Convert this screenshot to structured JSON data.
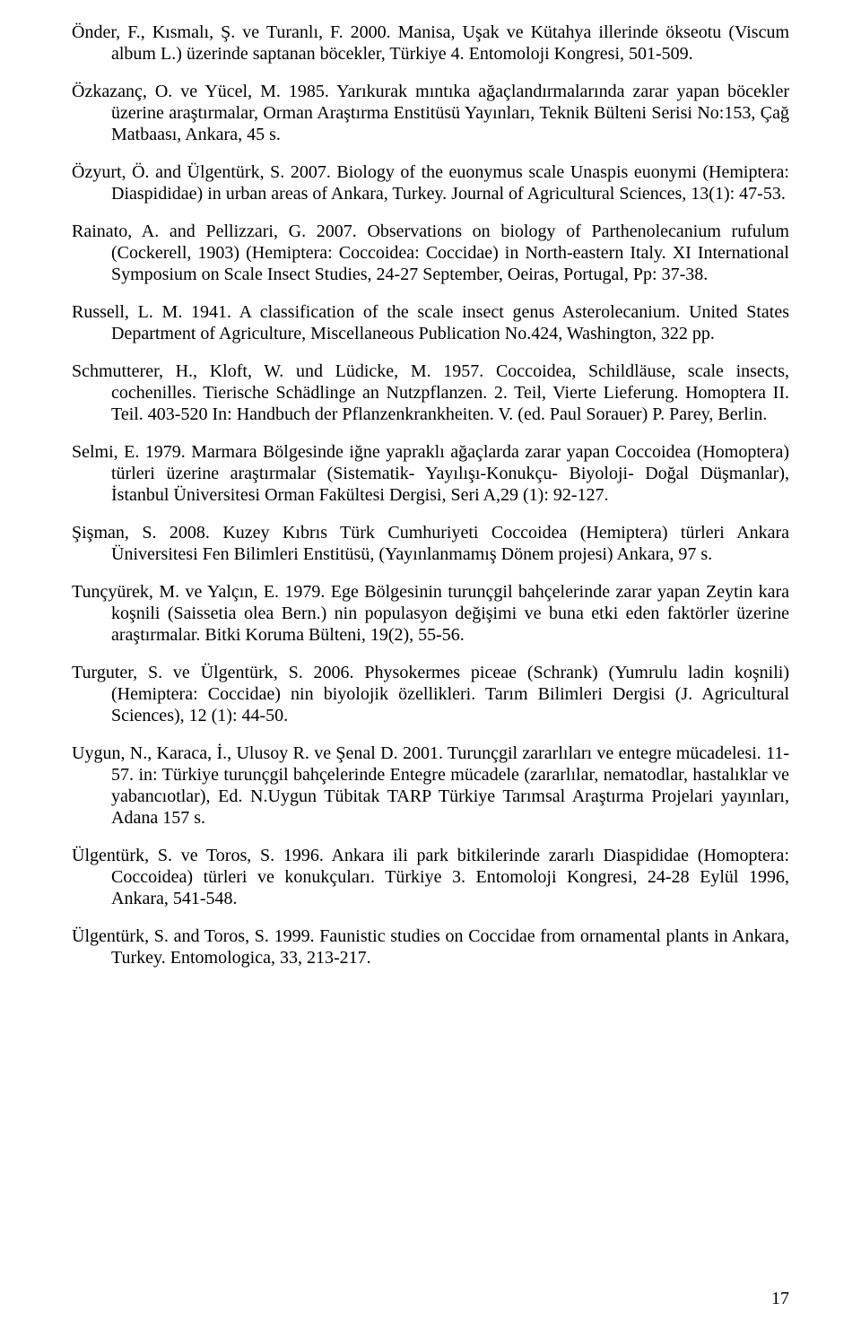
{
  "page": {
    "number": "17",
    "font_family": "Times New Roman",
    "font_size_pt": 15,
    "text_color": "#000000",
    "background_color": "#ffffff"
  },
  "references": [
    "Önder, F., Kısmalı, Ş. ve Turanlı, F. 2000. Manisa, Uşak ve Kütahya illerinde ökseotu (Viscum album L.) üzerinde saptanan böcekler, Türkiye 4. Entomoloji Kongresi, 501-509.",
    "Özkazanç, O. ve Yücel, M. 1985. Yarıkurak mıntıka ağaçlandırmalarında zarar yapan böcekler üzerine araştırmalar, Orman Araştırma Enstitüsü Yayınları, Teknik Bülteni Serisi No:153, Çağ Matbaası, Ankara, 45 s.",
    "Özyurt, Ö. and Ülgentürk, S. 2007. Biology of the euonymus scale Unaspis euonymi (Hemiptera: Diaspididae) in urban areas of Ankara, Turkey. Journal of Agricultural Sciences, 13(1): 47-53.",
    "Rainato, A. and Pellizzari, G. 2007. Observations on biology of Parthenolecanium rufulum (Cockerell, 1903) (Hemiptera: Coccoidea: Coccidae) in North-eastern Italy. XI International Symposium on Scale Insect Studies, 24-27 September, Oeiras, Portugal, Pp: 37-38.",
    "Russell, L. M. 1941. A classification of the scale insect genus Asterolecanium. United States Department of Agriculture, Miscellaneous Publication No.424, Washington, 322 pp.",
    "Schmutterer, H., Kloft, W. und Lüdicke, M. 1957. Coccoidea, Schildläuse, scale insects, cochenilles. Tierische Schädlinge an Nutzpflanzen. 2. Teil, Vierte Lieferung. Homoptera II. Teil. 403-520 In: Handbuch der Pflanzenkrankheiten. V. (ed. Paul Sorauer) P. Parey, Berlin.",
    "Selmi, E. 1979. Marmara Bölgesinde iğne yapraklı ağaçlarda zarar yapan Coccoidea (Homoptera) türleri üzerine araştırmalar (Sistematik- Yayılışı-Konukçu- Biyoloji- Doğal Düşmanlar), İstanbul Üniversitesi Orman Fakültesi Dergisi, Seri A,29 (1): 92-127.",
    "Şişman, S. 2008. Kuzey Kıbrıs Türk Cumhuriyeti Coccoidea (Hemiptera) türleri Ankara Üniversitesi Fen Bilimleri Enstitüsü, (Yayınlanmamış Dönem projesi) Ankara, 97 s.",
    "Tunçyürek, M. ve Yalçın, E. 1979. Ege Bölgesinin turunçgil bahçelerinde zarar yapan Zeytin kara koşnili (Saissetia olea Bern.) nin populasyon değişimi ve buna etki eden faktörler üzerine araştırmalar. Bitki Koruma Bülteni, 19(2), 55-56.",
    "Turguter, S. ve Ülgentürk, S. 2006. Physokermes piceae (Schrank) (Yumrulu ladin koşnili) (Hemiptera: Coccidae) nin biyolojik özellikleri. Tarım Bilimleri Dergisi (J. Agricultural Sciences), 12 (1): 44-50.",
    "Uygun, N., Karaca, İ., Ulusoy R. ve Şenal D. 2001. Turunçgil zararlıları ve entegre mücadelesi. 11-57. in: Türkiye turunçgil bahçelerinde Entegre mücadele (zararlılar, nematodlar, hastalıklar ve yabancıotlar), Ed. N.Uygun Tübitak TARP Türkiye Tarımsal Araştırma Projelari yayınları, Adana 157 s.",
    "Ülgentürk, S. ve Toros, S. 1996. Ankara ili park bitkilerinde zararlı Diaspididae (Homoptera: Coccoidea) türleri ve konukçuları. Türkiye 3. Entomoloji Kongresi, 24-28 Eylül 1996, Ankara, 541-548.",
    "Ülgentürk, S. and Toros, S. 1999. Faunistic studies on Coccidae from ornamental plants in Ankara, Turkey. Entomologica, 33, 213-217."
  ]
}
